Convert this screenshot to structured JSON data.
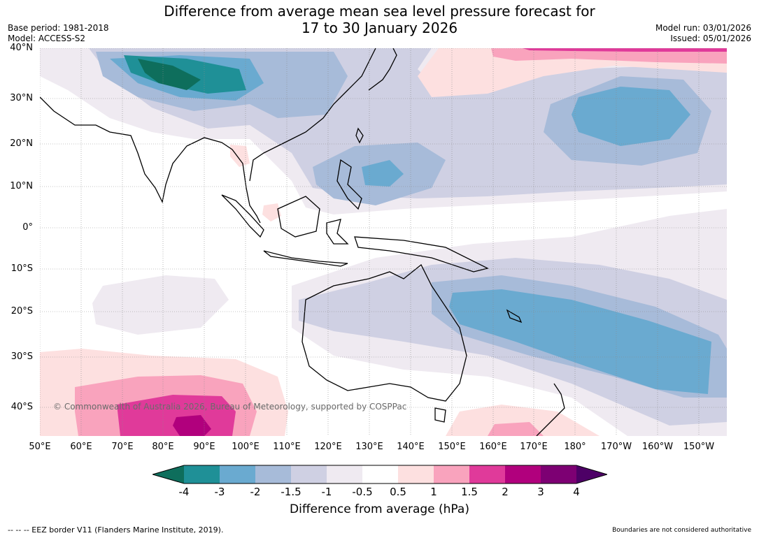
{
  "title_line1": "Difference from average mean sea level pressure forecast for",
  "title_line2": "17 to 30 January 2026",
  "base_period": "Base period: 1981-2018",
  "model": "Model: ACCESS-S2",
  "model_run": "Model run: 03/01/2026",
  "issued": "Issued: 05/01/2026",
  "lat_labels": [
    "40°N",
    "30°N",
    "20°N",
    "10°N",
    "0°",
    "10°S",
    "20°S",
    "30°S",
    "40°S"
  ],
  "lon_labels": [
    "50°E",
    "60°E",
    "70°E",
    "80°E",
    "90°E",
    "100°E",
    "110°E",
    "120°E",
    "130°E",
    "140°E",
    "150°E",
    "160°E",
    "170°E",
    "180°",
    "170°W",
    "160°W",
    "150°W"
  ],
  "copyright": "© Commonwealth of Australia 2026, Bureau of Meteorology, supported by COSPPac",
  "colorbar": {
    "ticks": [
      "-4",
      "-3",
      "-2",
      "-1.5",
      "-1",
      "-0.5",
      "0.5",
      "1",
      "1.5",
      "2",
      "3",
      "4"
    ],
    "colors": [
      "#0e6e5c",
      "#1f9097",
      "#6aaad0",
      "#a7bbd9",
      "#cfd0e3",
      "#efeaf1",
      "#ffffff",
      "#fde0e0",
      "#f9a3bd",
      "#e03a9a",
      "#b1007d",
      "#7d0073",
      "#4d0066"
    ],
    "label": "Difference from average (hPa)"
  },
  "footer_left": "--  --  -- EEZ border V11 (Flanders Marine Institute, 2019).",
  "footer_right": "Boundaries are not considered authoritative"
}
